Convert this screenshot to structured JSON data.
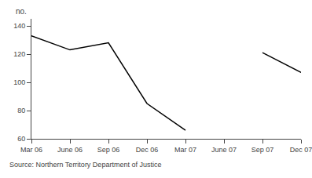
{
  "chart_data": {
    "type": "line",
    "categories": [
      "Mar 06",
      "June 06",
      "Sep 06",
      "Dec 06",
      "Mar 07",
      "June 07",
      "Sep 07",
      "Dec 07"
    ],
    "values": [
      133,
      123,
      128,
      85,
      66,
      null,
      121,
      107
    ],
    "color": "#000000",
    "ylabel": "no.",
    "annotations": [
      "Source: Northern Territory Department of Justice"
    ],
    "ylim": [
      60,
      145
    ],
    "yticks": [
      60,
      80,
      100,
      120,
      140
    ],
    "grid": false
  }
}
